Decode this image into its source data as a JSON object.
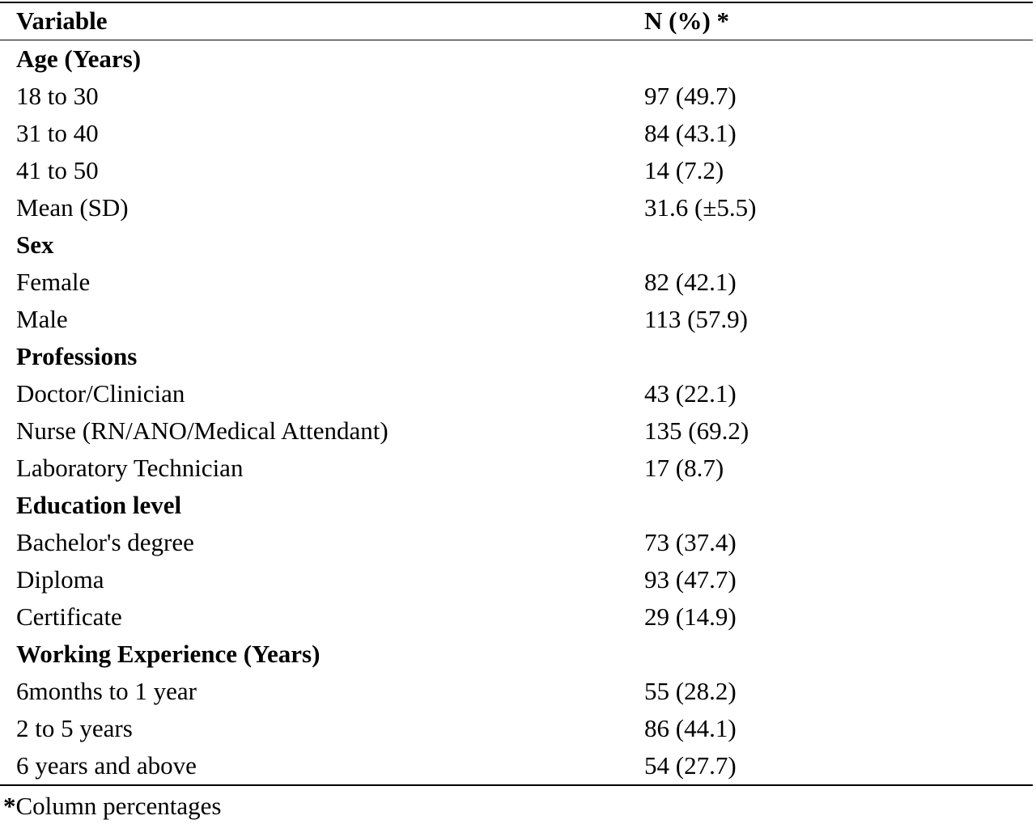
{
  "header": {
    "variable": "Variable",
    "value": "N (%) *"
  },
  "sections": [
    {
      "title": "Age (Years)",
      "rows": [
        {
          "label": "18 to 30",
          "value": "97 (49.7)"
        },
        {
          "label": "31 to 40",
          "value": "84 (43.1)"
        },
        {
          "label": "41 to 50",
          "value": "14 (7.2)"
        },
        {
          "label": "Mean (SD)",
          "value": "31.6 (±5.5)"
        }
      ]
    },
    {
      "title": "Sex",
      "rows": [
        {
          "label": "Female",
          "value": "82 (42.1)"
        },
        {
          "label": "Male",
          "value": "113 (57.9)"
        }
      ]
    },
    {
      "title": "Professions",
      "rows": [
        {
          "label": "Doctor/Clinician",
          "value": "43 (22.1)"
        },
        {
          "label": "Nurse (RN/ANO/Medical Attendant)",
          "value": "135 (69.2)"
        },
        {
          "label": "Laboratory Technician",
          "value": "17 (8.7)"
        }
      ]
    },
    {
      "title": "Education level",
      "rows": [
        {
          "label": "Bachelor's degree",
          "value": "73 (37.4)"
        },
        {
          "label": "Diploma",
          "value": "93 (47.7)"
        },
        {
          "label": "Certificate",
          "value": "29 (14.9)"
        }
      ]
    },
    {
      "title": "Working Experience (Years)",
      "rows": [
        {
          "label": "6months to 1 year",
          "value": "55 (28.2)"
        },
        {
          "label": "2 to 5 years",
          "value": "86 (44.1)"
        },
        {
          "label": "6 years and above",
          "value": "54 (27.7)"
        }
      ]
    }
  ],
  "footnote": {
    "marker": "*",
    "text": "Column percentages"
  }
}
